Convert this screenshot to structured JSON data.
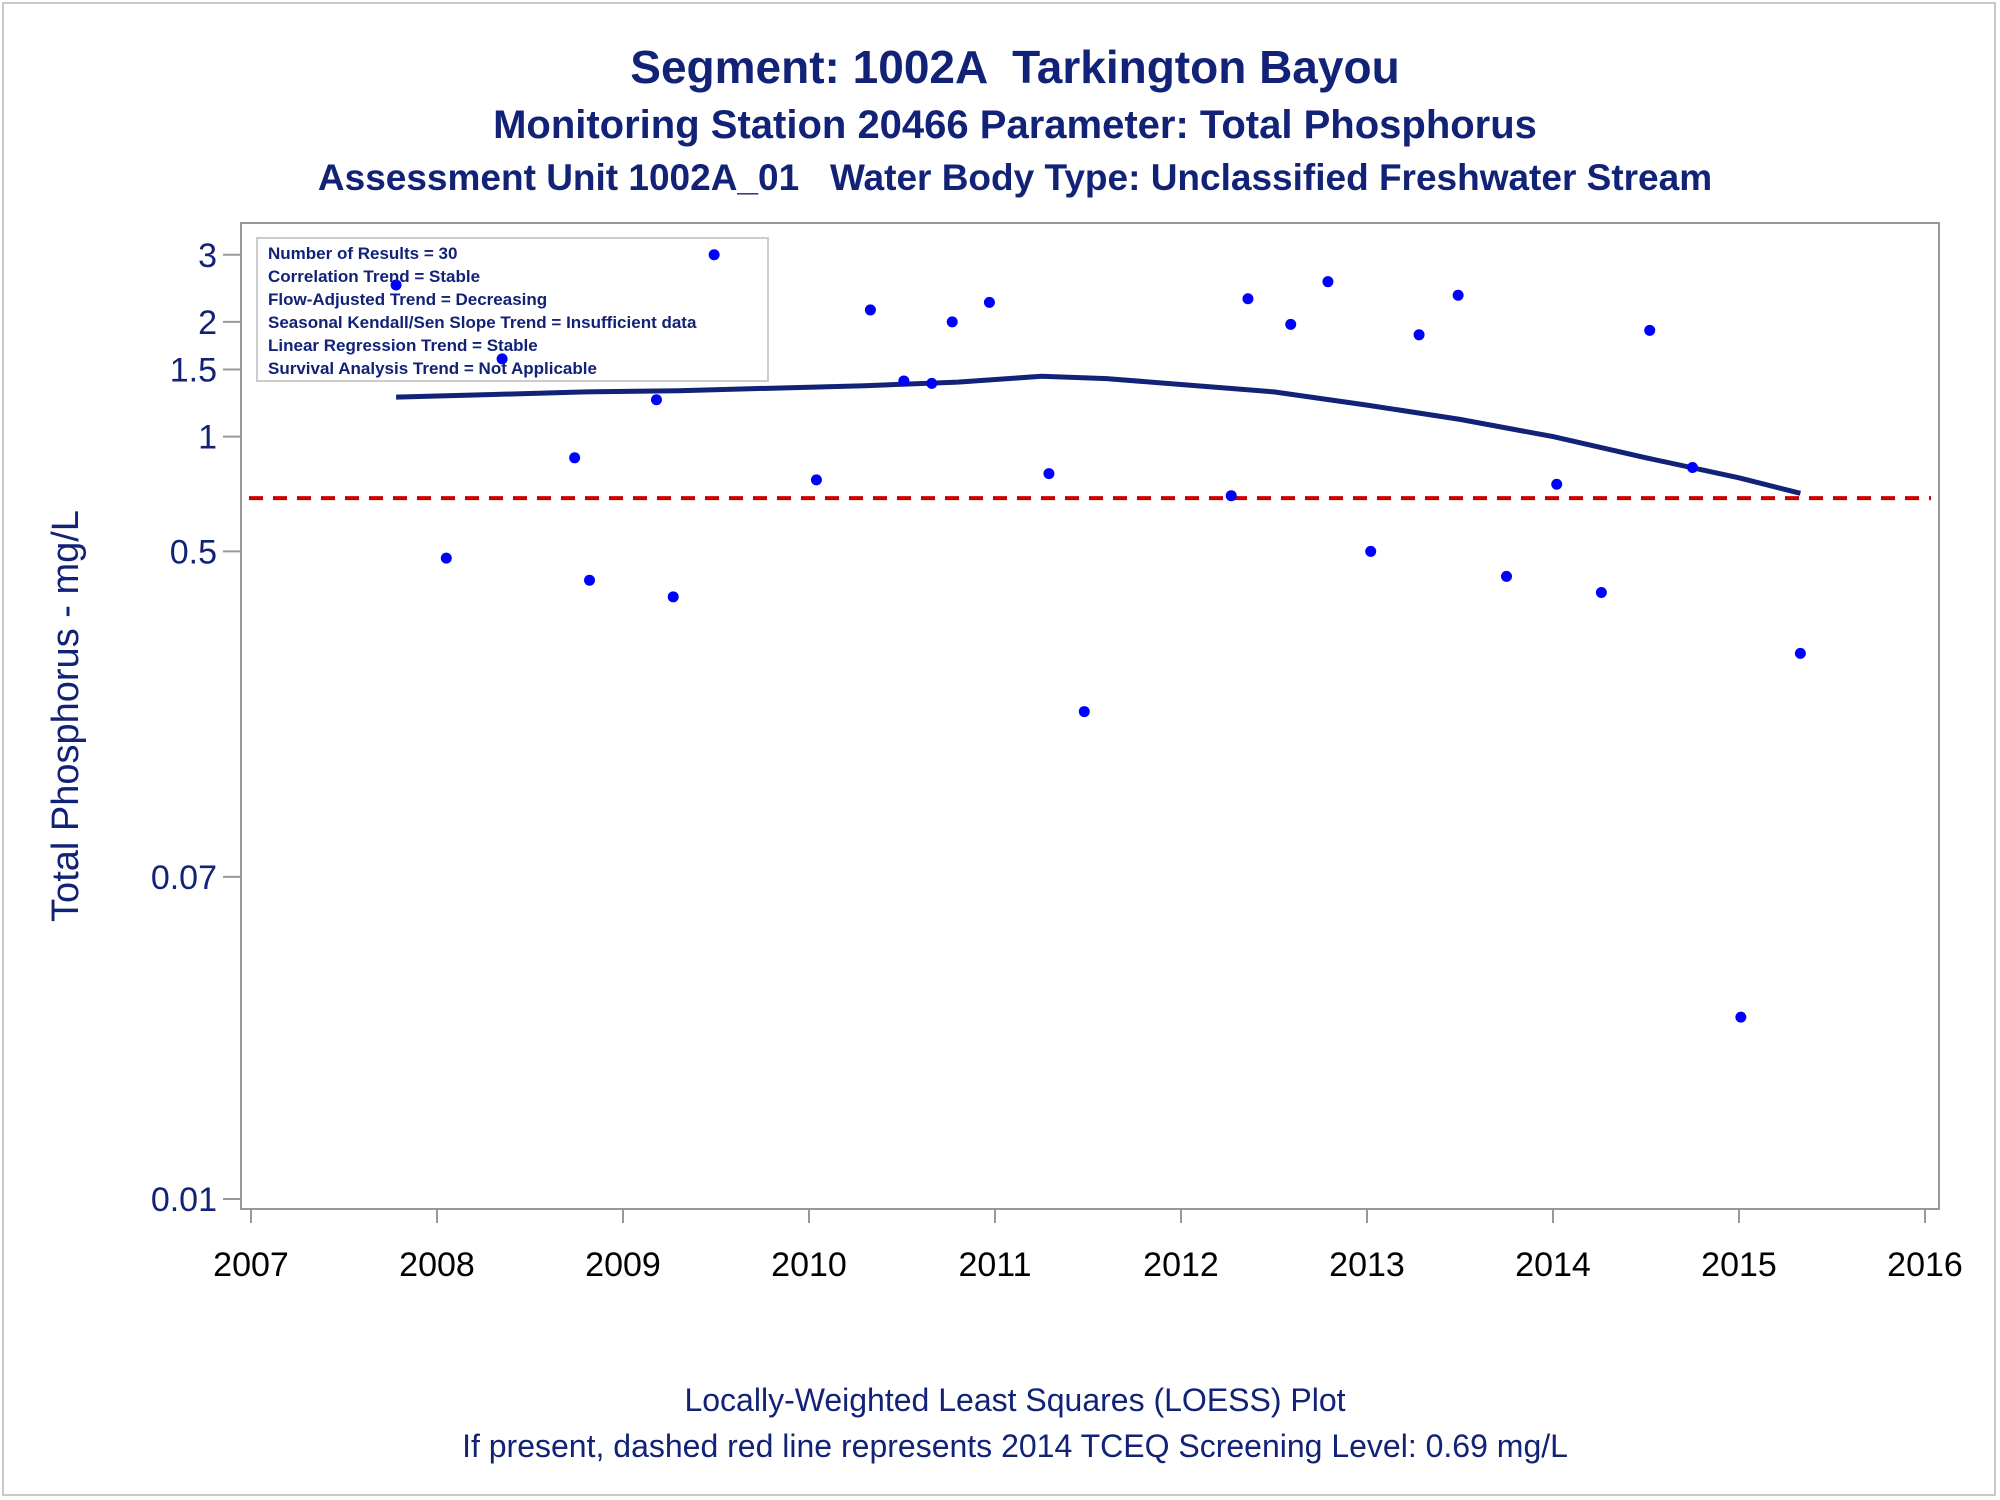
{
  "titles": {
    "line1": "Segment: 1002A  Tarkington Bayou",
    "line2": "Monitoring Station 20466 Parameter: Total Phosphorus",
    "line3": "Assessment Unit 1002A_01   Water Body Type: Unclassified Freshwater Stream"
  },
  "footnotes": {
    "line1": "Locally-Weighted Least Squares (LOESS) Plot",
    "line2": "If present, dashed red line represents 2014 TCEQ Screening Level: 0.69 mg/L"
  },
  "stats_box": [
    "Number of Results = 30",
    "Correlation Trend = Stable",
    "Flow-Adjusted Trend = Decreasing",
    "Seasonal Kendall/Sen Slope Trend = Insufficient data",
    "Linear Regression Trend = Stable",
    "Survival Analysis Trend = Not Applicable"
  ],
  "colors": {
    "text": "#112277",
    "points": "#0000ff",
    "loess": "#112277",
    "screening": "#cc0000",
    "axis": "#999999"
  },
  "chart_data": {
    "type": "scatter",
    "xlabel": "",
    "ylabel": "Total Phosphorus - mg/L",
    "yscale": "log",
    "xlim": [
      2007,
      2016
    ],
    "ylim": [
      0.01,
      3.3
    ],
    "xticks": [
      "2007",
      "2008",
      "2009",
      "2010",
      "2011",
      "2012",
      "2013",
      "2014",
      "2015",
      "2016"
    ],
    "yticks": [
      {
        "value": 3,
        "label": "3"
      },
      {
        "value": 2,
        "label": "2"
      },
      {
        "value": 1.5,
        "label": "1.5"
      },
      {
        "value": 1,
        "label": "1"
      },
      {
        "value": 0.5,
        "label": "0.5"
      },
      {
        "value": 0.07,
        "label": "0.07"
      },
      {
        "value": 0.01,
        "label": "0.01"
      }
    ],
    "screening_level": 0.69,
    "points": [
      {
        "x": 2007.78,
        "y": 2.5
      },
      {
        "x": 2008.05,
        "y": 0.48
      },
      {
        "x": 2008.35,
        "y": 1.6
      },
      {
        "x": 2008.74,
        "y": 0.88
      },
      {
        "x": 2008.82,
        "y": 0.42
      },
      {
        "x": 2009.18,
        "y": 1.25
      },
      {
        "x": 2009.27,
        "y": 0.38
      },
      {
        "x": 2009.49,
        "y": 3.0
      },
      {
        "x": 2010.04,
        "y": 0.77
      },
      {
        "x": 2010.33,
        "y": 2.15
      },
      {
        "x": 2010.51,
        "y": 1.4
      },
      {
        "x": 2010.66,
        "y": 1.38
      },
      {
        "x": 2010.77,
        "y": 2.0
      },
      {
        "x": 2010.97,
        "y": 2.25
      },
      {
        "x": 2011.29,
        "y": 0.8
      },
      {
        "x": 2011.48,
        "y": 0.19
      },
      {
        "x": 2012.27,
        "y": 0.7
      },
      {
        "x": 2012.36,
        "y": 2.3
      },
      {
        "x": 2012.59,
        "y": 1.97
      },
      {
        "x": 2012.79,
        "y": 2.55
      },
      {
        "x": 2013.02,
        "y": 0.5
      },
      {
        "x": 2013.28,
        "y": 1.85
      },
      {
        "x": 2013.49,
        "y": 2.35
      },
      {
        "x": 2013.75,
        "y": 0.43
      },
      {
        "x": 2014.02,
        "y": 0.75
      },
      {
        "x": 2014.26,
        "y": 0.39
      },
      {
        "x": 2014.52,
        "y": 1.9
      },
      {
        "x": 2014.75,
        "y": 0.83
      },
      {
        "x": 2015.01,
        "y": 0.03
      },
      {
        "x": 2015.33,
        "y": 0.27
      }
    ],
    "loess": [
      {
        "x": 2007.78,
        "y": 1.27
      },
      {
        "x": 2008.3,
        "y": 1.29
      },
      {
        "x": 2008.8,
        "y": 1.31
      },
      {
        "x": 2009.3,
        "y": 1.32
      },
      {
        "x": 2009.8,
        "y": 1.34
      },
      {
        "x": 2010.3,
        "y": 1.36
      },
      {
        "x": 2010.8,
        "y": 1.39
      },
      {
        "x": 2011.25,
        "y": 1.44
      },
      {
        "x": 2011.6,
        "y": 1.42
      },
      {
        "x": 2012.0,
        "y": 1.37
      },
      {
        "x": 2012.5,
        "y": 1.31
      },
      {
        "x": 2013.0,
        "y": 1.21
      },
      {
        "x": 2013.5,
        "y": 1.11
      },
      {
        "x": 2014.0,
        "y": 1.0
      },
      {
        "x": 2014.5,
        "y": 0.88
      },
      {
        "x": 2015.0,
        "y": 0.78
      },
      {
        "x": 2015.33,
        "y": 0.71
      }
    ]
  }
}
